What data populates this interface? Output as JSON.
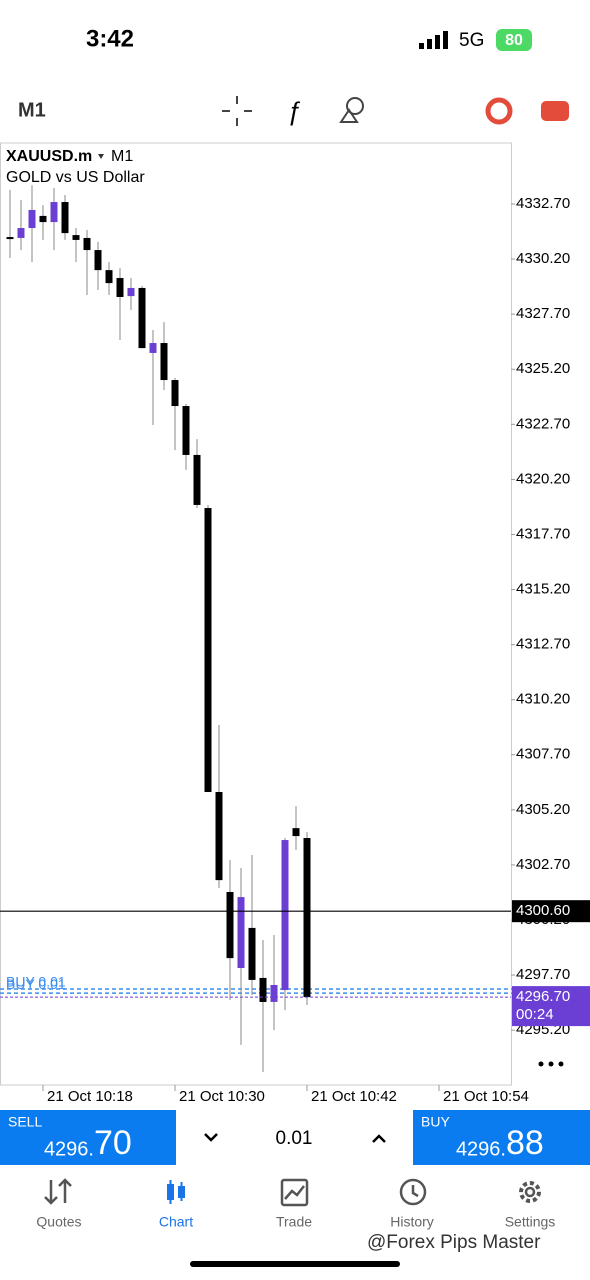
{
  "status_bar": {
    "time": "3:42",
    "network": "5G",
    "battery": "80"
  },
  "toolbar": {
    "timeframe": "M1"
  },
  "chart_data": {
    "type": "candlestick",
    "symbol": "XAUUSD.m",
    "timeframe": "M1",
    "description": "GOLD vs US Dollar",
    "up_color": "#6b3fd4",
    "down_color": "#000000",
    "categories": [
      null,
      null,
      null,
      "21 Oct 10:18",
      null,
      null,
      null,
      null,
      null,
      null,
      null,
      null,
      null,
      null,
      null,
      "21 Oct 10:30",
      null,
      null,
      null,
      null,
      null,
      null,
      null,
      null,
      null,
      null,
      null,
      "21 Oct 10:42",
      null,
      null,
      null,
      null,
      null,
      null,
      null,
      null,
      null,
      null,
      null,
      "21 Oct 10:54"
    ],
    "open": [
      4331.2,
      4331.16,
      4331.61,
      4332.16,
      4331.88,
      4332.79,
      4331.29,
      4331.16,
      4330.61,
      4329.7,
      4329.34,
      4328.52,
      4328.89,
      4325.94,
      4326.39,
      4324.71,
      4323.53,
      4321.31,
      4318.9,
      4306.01,
      4301.47,
      4298.02,
      4299.84,
      4297.57,
      4296.48,
      4297.02,
      4304.37,
      4303.92,
      null,
      null,
      null,
      null,
      null,
      null,
      null,
      null,
      null,
      null,
      null,
      null
    ],
    "high": [
      4333.34,
      4332.88,
      4333.56,
      4332.65,
      4333.43,
      4333.11,
      4331.61,
      4331.52,
      4330.98,
      4330.07,
      4329.79,
      4329.34,
      4328.98,
      4326.98,
      4327.34,
      4324.8,
      4323.62,
      4322.03,
      4319.04,
      4309.05,
      4302.92,
      4302.56,
      4303.15,
      4299.29,
      4299.52,
      4303.92,
      4305.37,
      4304.19,
      null,
      null,
      null,
      null,
      null,
      null,
      null,
      null,
      null,
      null,
      null,
      null
    ],
    "low": [
      4330.25,
      4330.61,
      4330.07,
      4331.07,
      4330.61,
      4331.07,
      4330.07,
      4328.57,
      4328.8,
      4328.57,
      4326.53,
      4327.89,
      4326.16,
      4322.67,
      4324.26,
      4321.53,
      4320.63,
      4318.9,
      4306.01,
      4301.65,
      4296.57,
      4294.53,
      4296.79,
      4293.3,
      4295.2,
      4296.11,
      4303.38,
      4296.34,
      null,
      null,
      null,
      null,
      null,
      null,
      null,
      null,
      null,
      null,
      null,
      null
    ],
    "close": [
      4331.18,
      4331.61,
      4332.43,
      4331.88,
      4332.79,
      4331.38,
      4331.07,
      4330.61,
      4329.7,
      4329.11,
      4328.48,
      4328.89,
      4326.16,
      4326.39,
      4324.71,
      4323.53,
      4321.31,
      4319.04,
      4306.01,
      4302.01,
      4298.47,
      4301.24,
      4297.48,
      4296.48,
      4297.25,
      4303.83,
      4304.01,
      4296.7,
      null,
      null,
      null,
      null,
      null,
      null,
      null,
      null,
      null,
      null,
      null,
      null
    ],
    "ylim": [
      4292.71,
      4335.47
    ],
    "yticks": [
      {
        "value": 4332.7,
        "label": "4332.70"
      },
      {
        "value": 4330.2,
        "label": "4330.20"
      },
      {
        "value": 4327.7,
        "label": "4327.70"
      },
      {
        "value": 4325.2,
        "label": "4325.20"
      },
      {
        "value": 4322.7,
        "label": "4322.70"
      },
      {
        "value": 4320.2,
        "label": "4320.20"
      },
      {
        "value": 4317.7,
        "label": "4317.70"
      },
      {
        "value": 4315.2,
        "label": "4315.20"
      },
      {
        "value": 4312.7,
        "label": "4312.70"
      },
      {
        "value": 4310.2,
        "label": "4310.20"
      },
      {
        "value": 4307.7,
        "label": "4307.70"
      },
      {
        "value": 4305.2,
        "label": "4305.20"
      },
      {
        "value": 4302.7,
        "label": "4302.70"
      },
      {
        "value": 4300.2,
        "label": "4300.20"
      },
      {
        "value": 4297.7,
        "label": "4297.70"
      },
      {
        "value": 4295.2,
        "label": "4295.20"
      }
    ],
    "price_line": {
      "value": 4300.6,
      "label": "4300.60",
      "color": "#000000"
    },
    "bid_line": {
      "value": 4296.7,
      "label": "4296.70",
      "timer": "00:24",
      "color": "#6b3fd4"
    },
    "order_lines": [
      {
        "value": 4297.07,
        "label": "BUY 0.01",
        "color": "#3d8ef0"
      },
      {
        "value": 4296.88,
        "label": "BUY 0.01",
        "color": "#3d8ef0"
      }
    ]
  },
  "trade_bar": {
    "sell": {
      "label": "SELL",
      "price_small": "4296.",
      "price_big": "70"
    },
    "volume": "0.01",
    "buy": {
      "label": "BUY",
      "price_small": "4296.",
      "price_big": "88"
    }
  },
  "nav": [
    {
      "label": "Quotes"
    },
    {
      "label": "Chart"
    },
    {
      "label": "Trade"
    },
    {
      "label": "History"
    },
    {
      "label": "Settings"
    }
  ],
  "watermark": "@Forex Pips Master"
}
